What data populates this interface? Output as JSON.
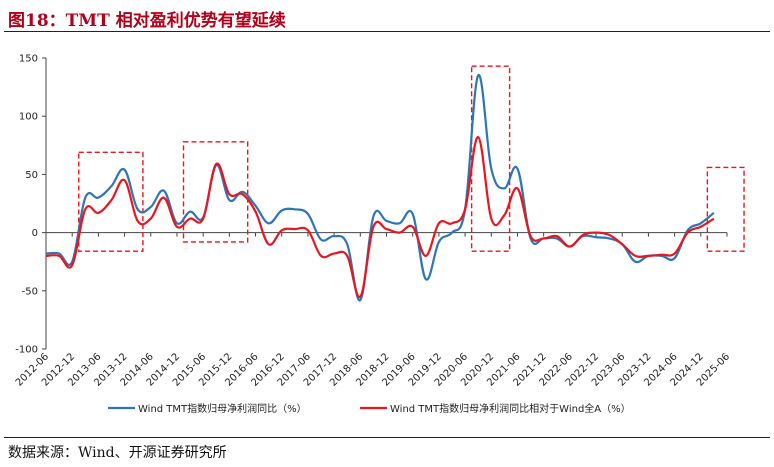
{
  "header": {
    "title": "图18：TMT 相对盈利优势有望延续"
  },
  "footer": {
    "source": "数据来源：Wind、开源证券研究所"
  },
  "colors": {
    "blue": "#2e75b6",
    "red": "#e8161f",
    "box": "#e8161f",
    "axis": "#444444"
  },
  "chart_data": {
    "type": "line",
    "title": "",
    "xlabel": "",
    "ylabel": "",
    "ylim": [
      -100,
      150
    ],
    "yticks": [
      -100,
      -50,
      0,
      50,
      100,
      150
    ],
    "grid": false,
    "legend_position": "bottom",
    "x": [
      "2012-06",
      "2012-09",
      "2012-12",
      "2013-03",
      "2013-06",
      "2013-09",
      "2013-12",
      "2014-03",
      "2014-06",
      "2014-09",
      "2014-12",
      "2015-03",
      "2015-06",
      "2015-09",
      "2015-12",
      "2016-03",
      "2016-06",
      "2016-09",
      "2016-12",
      "2017-03",
      "2017-06",
      "2017-09",
      "2017-12",
      "2018-03",
      "2018-06",
      "2018-09",
      "2018-12",
      "2019-03",
      "2019-06",
      "2019-09",
      "2019-12",
      "2020-03",
      "2020-06",
      "2020-09",
      "2020-12",
      "2021-03",
      "2021-06",
      "2021-09",
      "2021-12",
      "2022-03",
      "2022-06",
      "2022-09",
      "2022-12",
      "2023-03",
      "2023-06",
      "2023-09",
      "2023-12",
      "2024-03",
      "2024-06",
      "2024-09",
      "2024-12",
      "2025-03",
      "2025-06"
    ],
    "xtick_labels": [
      "2012-06",
      "2012-12",
      "2013-06",
      "2013-12",
      "2014-06",
      "2014-12",
      "2015-06",
      "2015-12",
      "2016-06",
      "2016-12",
      "2017-06",
      "2017-12",
      "2018-06",
      "2018-12",
      "2019-06",
      "2019-12",
      "2020-06",
      "2020-12",
      "2021-06",
      "2021-12",
      "2022-06",
      "2022-12",
      "2023-06",
      "2023-12",
      "2024-06",
      "2024-12",
      "2025-06"
    ],
    "series": [
      {
        "name": "Wind TMT指数归母净利润同比（%）",
        "color": "#2e75b6",
        "values": [
          -18,
          -18,
          -25,
          30,
          30,
          40,
          54,
          20,
          22,
          36,
          8,
          18,
          13,
          58,
          28,
          35,
          23,
          8,
          19,
          20,
          16,
          -6,
          -3,
          -10,
          -58,
          14,
          10,
          8,
          16,
          -40,
          -8,
          0,
          20,
          135,
          55,
          38,
          55,
          -5,
          -5,
          -5,
          -12,
          -3,
          -4,
          -5,
          -10,
          -25,
          -20,
          -20,
          -22,
          2,
          8,
          17,
          null
        ]
      },
      {
        "name": "Wind TMT指数归母净利润同比相对于Wind全A（%）",
        "color": "#e8161f",
        "values": [
          -20,
          -20,
          -28,
          20,
          17,
          28,
          45,
          10,
          12,
          30,
          5,
          12,
          12,
          59,
          33,
          33,
          18,
          -10,
          2,
          3,
          2,
          -20,
          -18,
          -20,
          -55,
          5,
          3,
          0,
          5,
          -20,
          8,
          8,
          20,
          82,
          12,
          15,
          38,
          -3,
          -5,
          -3,
          -12,
          -2,
          0,
          -2,
          -10,
          -20,
          -20,
          -19,
          -18,
          0,
          5,
          12,
          null
        ]
      }
    ],
    "highlight_boxes": [
      {
        "x_start": "2013-03",
        "x_end": "2014-03",
        "y_start": -16,
        "y_end": 69
      },
      {
        "x_start": "2015-03",
        "x_end": "2016-03",
        "y_start": -8,
        "y_end": 78
      },
      {
        "x_start": "2020-09",
        "x_end": "2021-03",
        "y_start": -16,
        "y_end": 143
      },
      {
        "x_start": "2025-03",
        "x_end": "2025-09",
        "y_start": -16,
        "y_end": 56
      }
    ]
  }
}
